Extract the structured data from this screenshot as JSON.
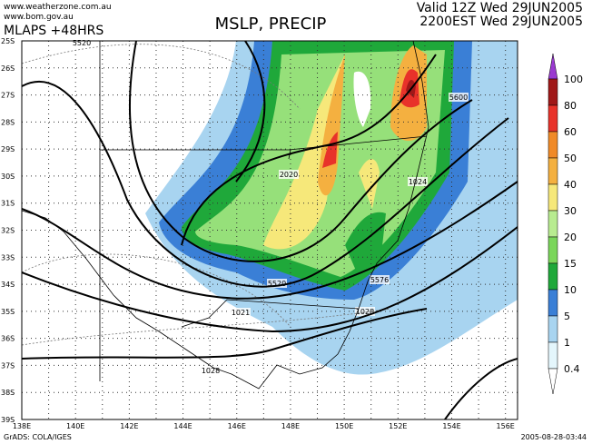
{
  "header": {
    "site1": "www.weatherzone.com.au",
    "site2": "www.bom.gov.au",
    "model": "MLAPS +48HRS",
    "title": "MSLP, PRECIP",
    "valid": "Valid 12Z Wed 29JUN2005",
    "local": "2200EST Wed 29JUN2005"
  },
  "map": {
    "lat_labels": [
      "25S",
      "26S",
      "27S",
      "28S",
      "29S",
      "30S",
      "31S",
      "32S",
      "33S",
      "34S",
      "35S",
      "36S",
      "37S",
      "38S",
      "39S"
    ],
    "lon_labels": [
      "138E",
      "140E",
      "142E",
      "144E",
      "146E",
      "148E",
      "150E",
      "152E",
      "154E",
      "156E"
    ],
    "contour_labels": [
      "5520",
      "5600",
      "2020",
      "1024",
      "1021",
      "1028",
      "5520",
      "5576",
      "1028"
    ]
  },
  "legend": {
    "labels": [
      "100",
      "80",
      "60",
      "50",
      "40",
      "30",
      "20",
      "15",
      "10",
      "5",
      "1",
      "0.4"
    ]
  },
  "footer": {
    "left": "GrADS: COLA/IGES",
    "right": "2005-08-28-03:44"
  }
}
